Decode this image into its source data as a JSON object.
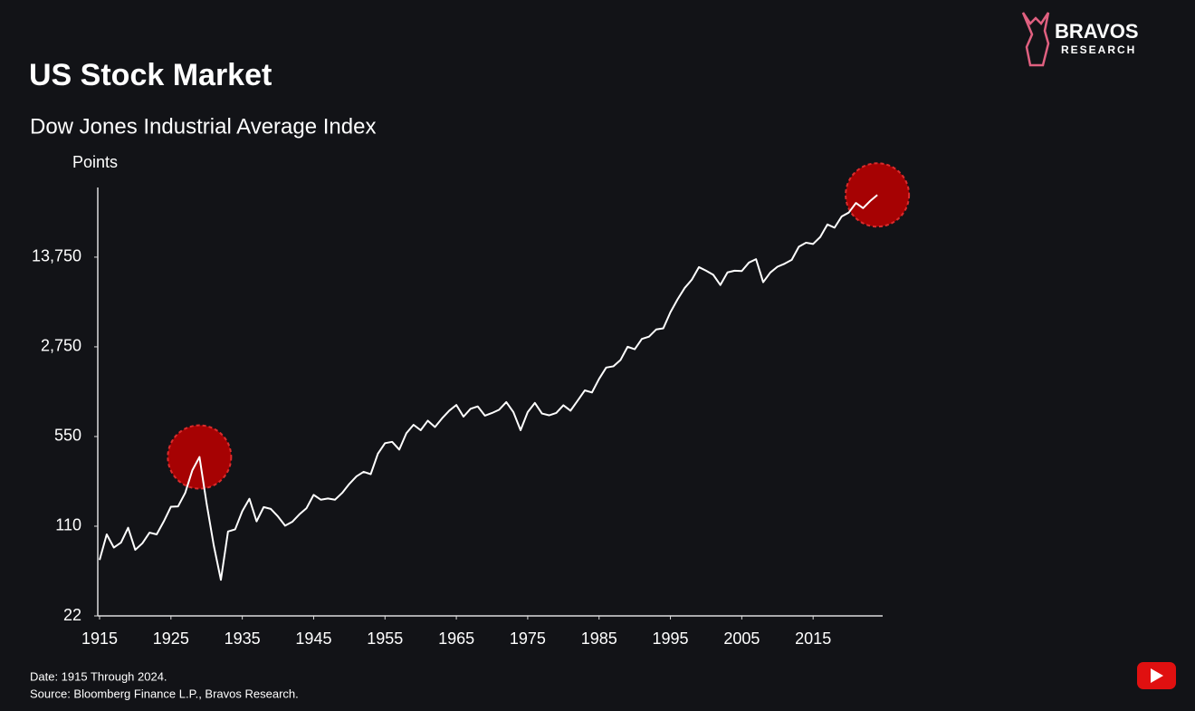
{
  "chart_data": {
    "type": "line",
    "title": "US Stock Market",
    "subtitle": "Dow Jones Industrial Average Index",
    "y_label": "Points",
    "footnotes": [
      "Date: 1915 Through 2024.",
      "Source: Bloomberg Finance L.P., Bravos Research."
    ],
    "logo": [
      "BRAVOS",
      "RESEARCH"
    ],
    "log_scale": true,
    "color": "#ffffff",
    "highlight_color": "#c00000",
    "x": [
      1915,
      1916,
      1917,
      1918,
      1919,
      1920,
      1921,
      1922,
      1923,
      1924,
      1925,
      1926,
      1927,
      1928,
      1929,
      1930,
      1931,
      1932,
      1933,
      1934,
      1935,
      1936,
      1937,
      1938,
      1939,
      1940,
      1941,
      1942,
      1943,
      1944,
      1945,
      1946,
      1947,
      1948,
      1949,
      1950,
      1951,
      1952,
      1953,
      1954,
      1955,
      1956,
      1957,
      1958,
      1959,
      1960,
      1961,
      1962,
      1963,
      1964,
      1965,
      1966,
      1967,
      1968,
      1969,
      1970,
      1971,
      1972,
      1973,
      1974,
      1975,
      1976,
      1977,
      1978,
      1979,
      1980,
      1981,
      1982,
      1983,
      1984,
      1985,
      1986,
      1987,
      1988,
      1989,
      1990,
      1991,
      1992,
      1993,
      1994,
      1995,
      1996,
      1997,
      1998,
      1999,
      2000,
      2001,
      2002,
      2003,
      2004,
      2005,
      2006,
      2007,
      2008,
      2009,
      2010,
      2011,
      2012,
      2013,
      2014,
      2015,
      2016,
      2017,
      2018,
      2019,
      2020,
      2021,
      2022,
      2023,
      2024
    ],
    "values": [
      60,
      95,
      75,
      82,
      107,
      72,
      81,
      98,
      95,
      120,
      156,
      157,
      200,
      300,
      381,
      165,
      78,
      42,
      100,
      104,
      144,
      180,
      120,
      155,
      150,
      131,
      111,
      119,
      136,
      152,
      193,
      177,
      181,
      177,
      200,
      235,
      269,
      292,
      280,
      404,
      488,
      500,
      435,
      584,
      679,
      616,
      731,
      652,
      763,
      874,
      969,
      786,
      905,
      944,
      800,
      839,
      890,
      1020,
      851,
      616,
      852,
      1005,
      831,
      805,
      839,
      964,
      875,
      1047,
      1259,
      1212,
      1547,
      1896,
      1939,
      2169,
      2753,
      2634,
      3169,
      3301,
      3754,
      3834,
      5117,
      6448,
      7908,
      9181,
      11497,
      10787,
      10022,
      8342,
      10454,
      10783,
      10718,
      12463,
      13265,
      8776,
      10428,
      11578,
      12218,
      13104,
      16577,
      17823,
      17425,
      19763,
      24719,
      23327,
      28538,
      30606,
      36338,
      33147,
      37690,
      42000
    ],
    "xlim": [
      1915,
      2025
    ],
    "xticks": [
      1915,
      1925,
      1935,
      1945,
      1955,
      1965,
      1975,
      1985,
      1995,
      2005,
      2015
    ],
    "ylim": [
      22,
      48000
    ],
    "yticks": [
      22,
      110,
      550,
      {
        "value": 2750,
        "label": "2,750"
      },
      {
        "value": 13750,
        "label": "13,750"
      }
    ],
    "highlights": [
      1929,
      2024
    ]
  }
}
